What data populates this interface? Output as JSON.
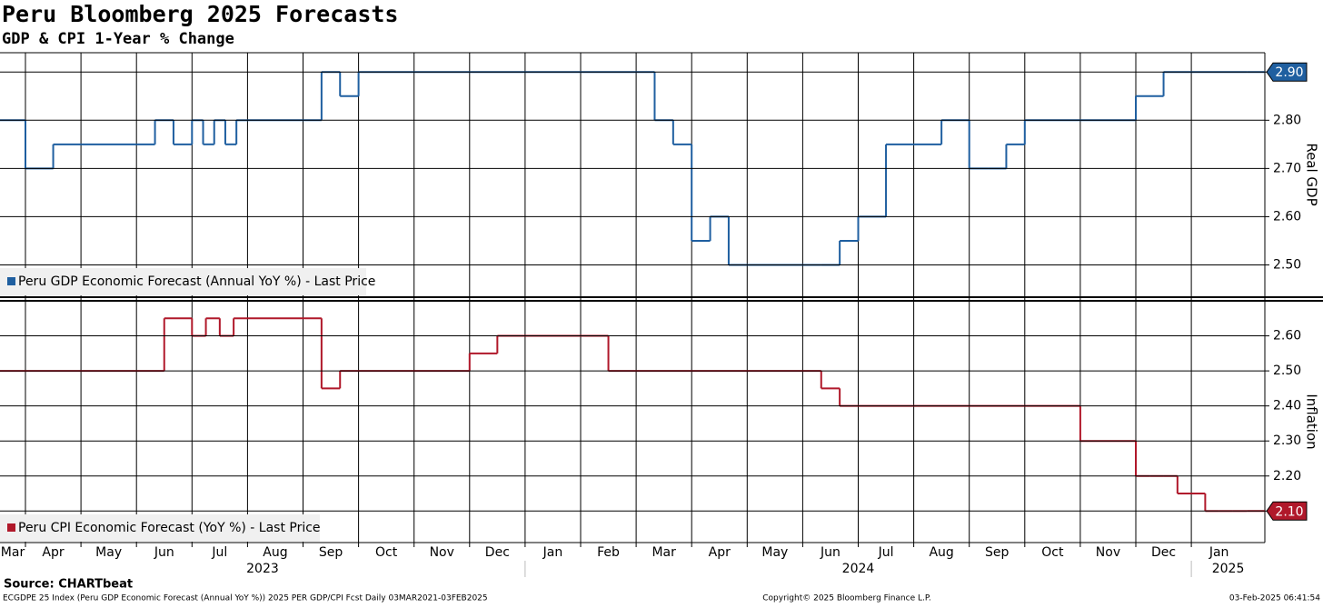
{
  "chart_data": {
    "type": "line",
    "title": "Peru Bloomberg 2025 Forecasts",
    "subtitle": "GDP & CPI 1-Year % Change",
    "source": "Source: CHARTbeat",
    "footnotes": [
      "ECGDPE 25 Index (Peru GDP Economic Forecast (Annual YoY %)) 2025 PER GDP/CPI Fcst  Daily 03MAR2021-03FEB2025",
      "Copyright© 2025 Bloomberg Finance L.P.",
      "03-Feb-2025 06:41:54"
    ],
    "grid": true,
    "xticks": [
      {
        "value": "2023-03",
        "label": "Mar"
      },
      {
        "value": "2023-04",
        "label": "Apr"
      },
      {
        "value": "2023-05",
        "label": "May"
      },
      {
        "value": "2023-06",
        "label": "Jun"
      },
      {
        "value": "2023-07",
        "label": "Jul"
      },
      {
        "value": "2023-08",
        "label": "Aug"
      },
      {
        "value": "2023-09",
        "label": "Sep"
      },
      {
        "value": "2023-10",
        "label": "Oct"
      },
      {
        "value": "2023-11",
        "label": "Nov"
      },
      {
        "value": "2023-12",
        "label": "Dec"
      },
      {
        "value": "2024-01",
        "label": "Jan"
      },
      {
        "value": "2024-02",
        "label": "Feb"
      },
      {
        "value": "2024-03",
        "label": "Mar"
      },
      {
        "value": "2024-04",
        "label": "Apr"
      },
      {
        "value": "2024-05",
        "label": "May"
      },
      {
        "value": "2024-06",
        "label": "Jun"
      },
      {
        "value": "2024-07",
        "label": "Jul"
      },
      {
        "value": "2024-08",
        "label": "Aug"
      },
      {
        "value": "2024-09",
        "label": "Sep"
      },
      {
        "value": "2024-10",
        "label": "Oct"
      },
      {
        "value": "2024-11",
        "label": "Nov"
      },
      {
        "value": "2024-12",
        "label": "Dec"
      },
      {
        "value": "2025-01",
        "label": "Jan"
      }
    ],
    "years": [
      "2023",
      "2024",
      "2025"
    ],
    "panels": [
      {
        "ylabel": "Real GDP",
        "ylim": [
          2.435,
          2.94
        ],
        "yticks": [
          {
            "value": 2.5,
            "label": "2.50"
          },
          {
            "value": 2.6,
            "label": "2.60"
          },
          {
            "value": 2.7,
            "label": "2.70"
          },
          {
            "value": 2.8,
            "label": "2.80"
          },
          {
            "value": 2.9,
            "label": "2.90"
          }
        ],
        "series": [
          {
            "name": "Peru GDP Economic Forecast (Annual YoY %) - Last Price",
            "color": "#1f5fa0",
            "last_label": "2.90",
            "x": [
              "2023-03",
              "2023-04",
              "2023-04",
              "2023-05",
              "2023-06",
              "2023-06",
              "2023-06",
              "2023-07",
              "2023-07",
              "2023-07",
              "2023-07",
              "2023-07",
              "2023-08",
              "2023-09",
              "2023-09",
              "2023-09",
              "2023-10",
              "2023-11",
              "2023-12",
              "2024-01",
              "2024-02",
              "2024-03",
              "2024-03",
              "2024-03",
              "2024-04",
              "2024-04",
              "2024-04",
              "2024-05",
              "2024-06",
              "2024-06",
              "2024-06",
              "2024-07",
              "2024-07",
              "2024-08",
              "2024-08",
              "2024-09",
              "2024-09",
              "2024-09",
              "2024-10",
              "2024-11",
              "2024-12",
              "2024-12",
              "2025-01",
              "2025-02"
            ],
            "values": [
              2.8,
              2.7,
              2.75,
              2.75,
              2.75,
              2.8,
              2.75,
              2.8,
              2.75,
              2.8,
              2.75,
              2.8,
              2.8,
              2.8,
              2.9,
              2.85,
              2.9,
              2.9,
              2.9,
              2.9,
              2.9,
              2.9,
              2.8,
              2.75,
              2.55,
              2.6,
              2.5,
              2.5,
              2.5,
              2.5,
              2.55,
              2.6,
              2.75,
              2.75,
              2.8,
              2.7,
              2.7,
              2.75,
              2.8,
              2.8,
              2.85,
              2.9,
              2.9,
              2.9
            ]
          }
        ]
      },
      {
        "ylabel": "Inflation",
        "ylim": [
          2.01,
          2.7
        ],
        "yticks": [
          {
            "value": 2.1,
            "label": "2.10"
          },
          {
            "value": 2.2,
            "label": "2.20"
          },
          {
            "value": 2.3,
            "label": "2.30"
          },
          {
            "value": 2.4,
            "label": "2.40"
          },
          {
            "value": 2.5,
            "label": "2.50"
          },
          {
            "value": 2.6,
            "label": "2.60"
          }
        ],
        "series": [
          {
            "name": "Peru CPI Economic Forecast (YoY %) - Last Price",
            "color": "#b0182a",
            "last_label": "2.10",
            "x": [
              "2023-03",
              "2023-04",
              "2023-05",
              "2023-06",
              "2023-06",
              "2023-07",
              "2023-07",
              "2023-07",
              "2023-07",
              "2023-08",
              "2023-09",
              "2023-09",
              "2023-09",
              "2023-10",
              "2023-11",
              "2023-12",
              "2023-12",
              "2024-01",
              "2024-02",
              "2024-02",
              "2024-03",
              "2024-04",
              "2024-05",
              "2024-06",
              "2024-06",
              "2024-06",
              "2024-07",
              "2024-08",
              "2024-09",
              "2024-10",
              "2024-11",
              "2024-12",
              "2024-12",
              "2024-12",
              "2024-12",
              "2025-01",
              "2025-01",
              "2025-01",
              "2025-01",
              "2025-02"
            ],
            "values": [
              2.5,
              2.5,
              2.5,
              2.5,
              2.65,
              2.6,
              2.65,
              2.6,
              2.65,
              2.65,
              2.65,
              2.45,
              2.5,
              2.5,
              2.5,
              2.55,
              2.6,
              2.6,
              2.6,
              2.5,
              2.5,
              2.5,
              2.5,
              2.5,
              2.45,
              2.4,
              2.4,
              2.4,
              2.4,
              2.4,
              2.3,
              2.2,
              2.2,
              2.2,
              2.15,
              2.15,
              2.1,
              2.1,
              2.1,
              2.1
            ]
          }
        ]
      }
    ]
  }
}
